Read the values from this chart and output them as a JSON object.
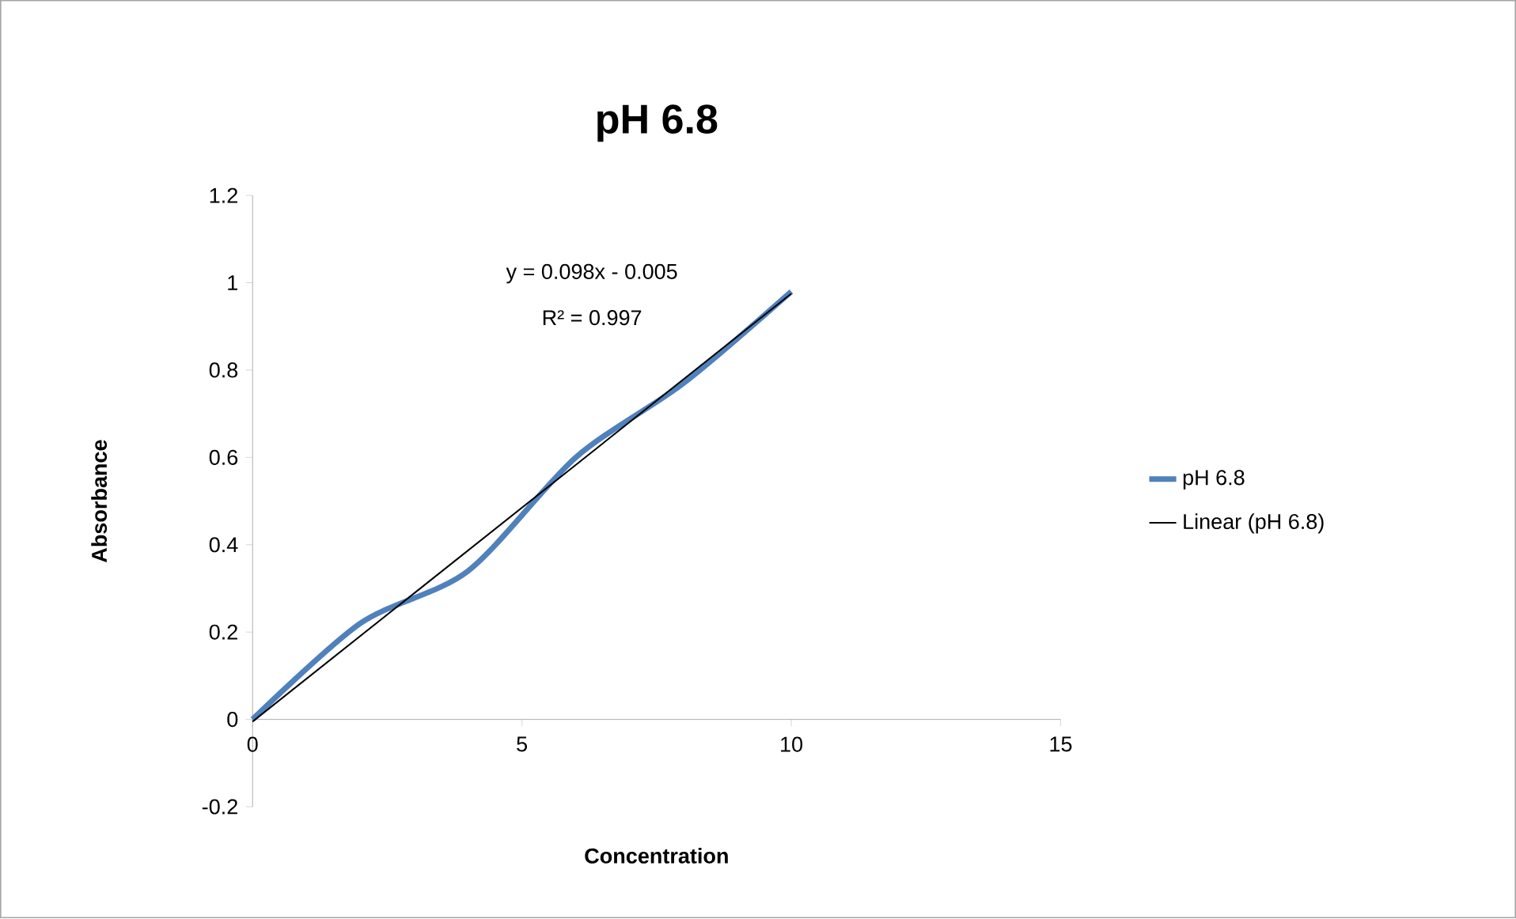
{
  "chart_data": {
    "type": "line",
    "title": "pH 6.8",
    "xlabel": "Concentration",
    "ylabel": "Absorbance",
    "xlim": [
      0,
      15
    ],
    "ylim": [
      -0.2,
      1.2
    ],
    "xticks": [
      0,
      5,
      10,
      15
    ],
    "yticks": [
      -0.2,
      0,
      0.2,
      0.4,
      0.6,
      0.8,
      1,
      1.2
    ],
    "series": [
      {
        "name": "pH 6.8",
        "color": "#4f81bd",
        "x": [
          0,
          2,
          4,
          6,
          8,
          10
        ],
        "values": [
          0,
          0.22,
          0.34,
          0.6,
          0.77,
          0.98
        ]
      },
      {
        "name": "Linear (pH 6.8)",
        "type": "line",
        "color": "#000000",
        "x": [
          0,
          10
        ],
        "values": [
          -0.005,
          0.975
        ]
      }
    ],
    "legend": "right",
    "annotations": [
      "y = 0.098x - 0.005",
      "R² = 0.997"
    ]
  }
}
